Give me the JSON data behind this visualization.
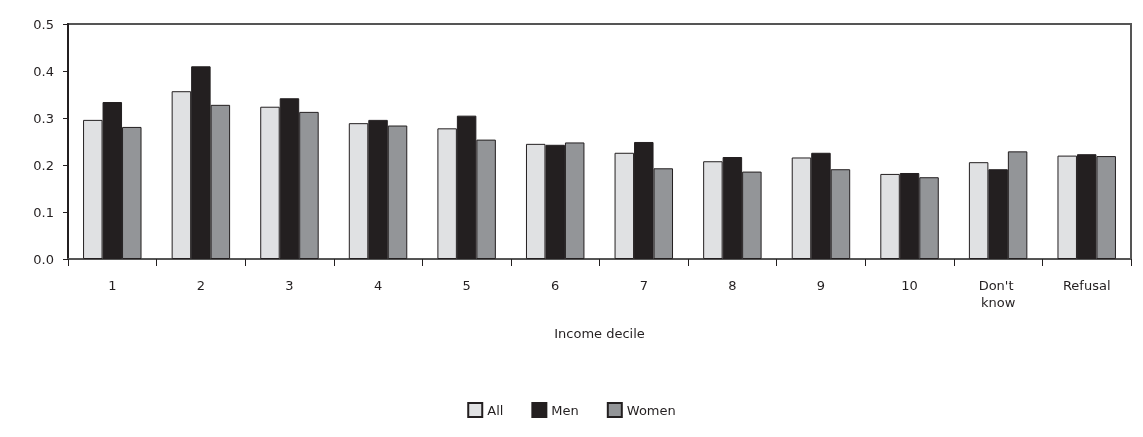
{
  "chart_data": {
    "type": "bar",
    "xlabel": "Income decile",
    "categories": [
      "1",
      "2",
      "3",
      "4",
      "5",
      "6",
      "7",
      "8",
      "9",
      "10",
      "Don't know",
      "Refusal"
    ],
    "series": [
      {
        "name": "All",
        "color": "#e0e1e3",
        "values": [
          0.296,
          0.357,
          0.324,
          0.289,
          0.278,
          0.245,
          0.226,
          0.208,
          0.216,
          0.181,
          0.206,
          0.22
        ]
      },
      {
        "name": "Men",
        "color": "#231f20",
        "values": [
          0.334,
          0.41,
          0.342,
          0.296,
          0.305,
          0.243,
          0.249,
          0.217,
          0.226,
          0.183,
          0.191,
          0.223
        ]
      },
      {
        "name": "Women",
        "color": "#939598",
        "values": [
          0.281,
          0.328,
          0.313,
          0.284,
          0.254,
          0.248,
          0.193,
          0.186,
          0.191,
          0.174,
          0.229,
          0.219
        ]
      }
    ],
    "ylim": [
      0,
      0.5
    ],
    "yticks": [
      "0.0",
      0.1,
      0.2,
      0.3,
      0.4,
      0.5
    ],
    "grid": false,
    "legend": "bottom"
  }
}
